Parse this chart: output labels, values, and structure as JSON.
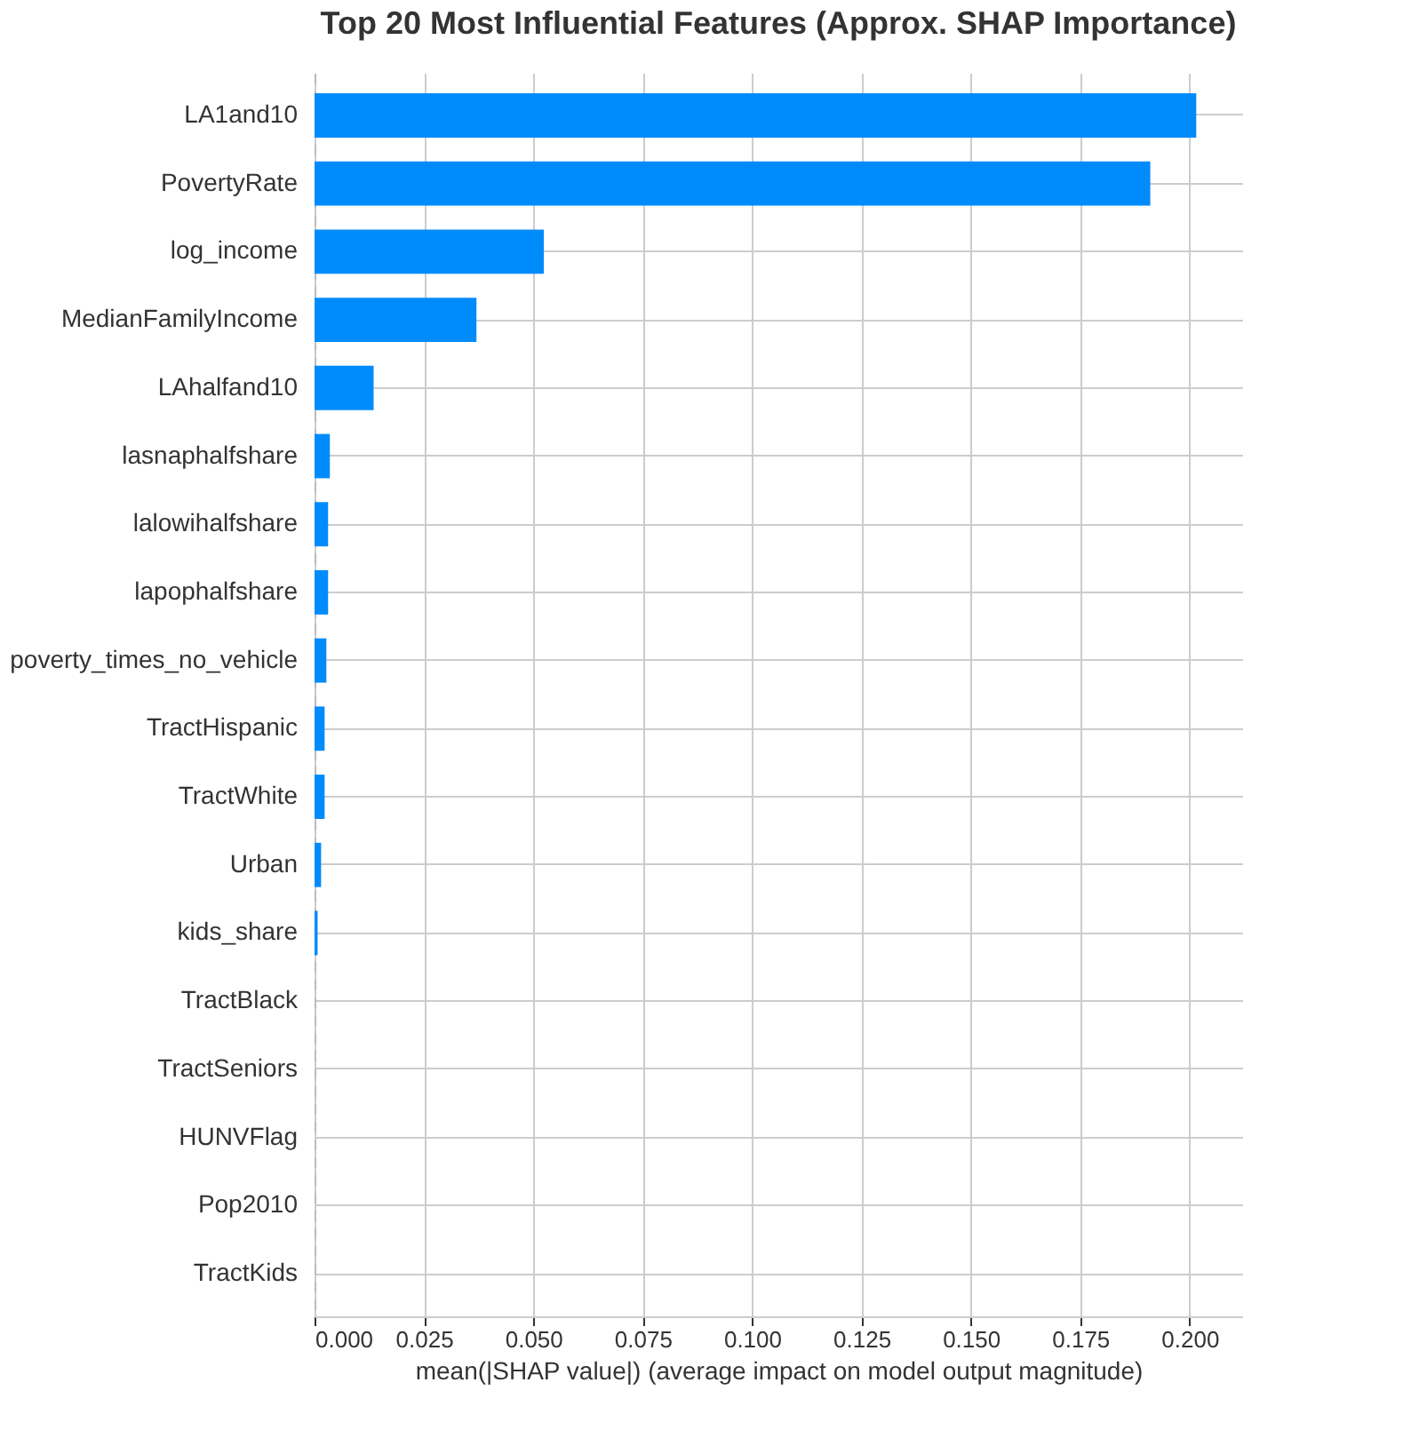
{
  "chart_data": {
    "type": "bar",
    "orientation": "horizontal",
    "title": "Top 20 Most Influential Features (Approx. SHAP Importance)",
    "xlabel": "mean(|SHAP value|) (average impact on model output magnitude)",
    "categories": [
      "LA1and10",
      "PovertyRate",
      "log_income",
      "MedianFamilyIncome",
      "LAhalfand10",
      "lasnaphalfshare",
      "lalowihalfshare",
      "lapophalfshare",
      "poverty_times_no_vehicle",
      "TractHispanic",
      "TractWhite",
      "Urban",
      "kids_share",
      "TractBlack",
      "TractSeniors",
      "HUNVFlag",
      "Pop2010",
      "TractKids"
    ],
    "values": [
      0.2015,
      0.191,
      0.0524,
      0.037,
      0.0135,
      0.0035,
      0.0031,
      0.0031,
      0.0027,
      0.0023,
      0.0023,
      0.0015,
      0.0007,
      null,
      null,
      null,
      null,
      null
    ],
    "color": "#008bfb",
    "xlim": [
      0,
      0.212
    ],
    "xticks": [
      {
        "value": 0,
        "label": "0.000"
      },
      {
        "value": 0.025,
        "label": "0.025"
      },
      {
        "value": 0.05,
        "label": "0.050"
      },
      {
        "value": 0.075,
        "label": "0.075"
      },
      {
        "value": 0.1,
        "label": "0.100"
      },
      {
        "value": 0.125,
        "label": "0.125"
      },
      {
        "value": 0.15,
        "label": "0.150"
      },
      {
        "value": 0.175,
        "label": "0.175"
      },
      {
        "value": 0.2,
        "label": "0.200"
      }
    ],
    "grid": true
  }
}
